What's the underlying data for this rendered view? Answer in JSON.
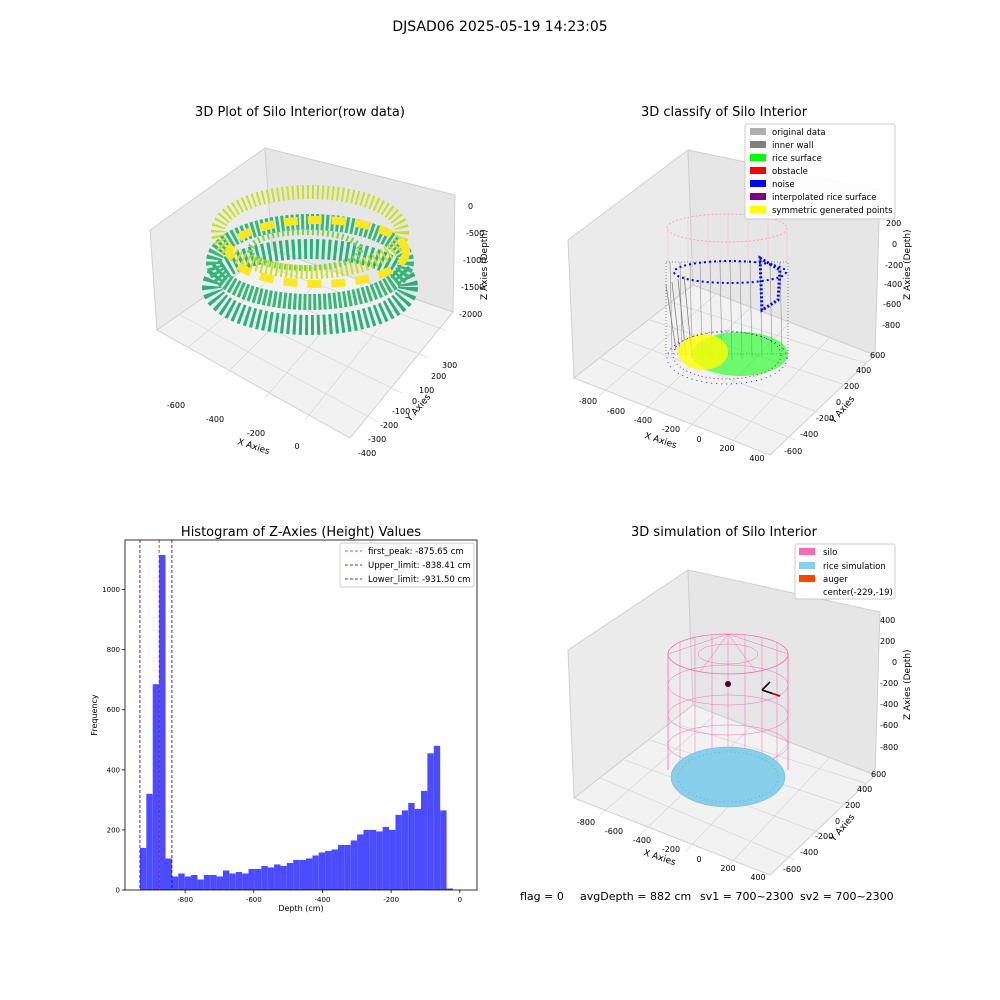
{
  "figure": {
    "suptitle": "DJSAD06 2025-05-19 14:23:05",
    "footer": {
      "flag": "flag = 0",
      "avg_depth": "avgDepth = 882 cm",
      "sv1": "sv1 = 700~2300",
      "sv2": "sv2 = 700~2300"
    }
  },
  "colors": {
    "hist_bar": "#4b4bff",
    "peak_line": "#ff0000",
    "limit_line": "#0000cc",
    "silo": "#ff69b4",
    "rice_simulation": "#87ceeb",
    "auger": "#ff4500",
    "original_data": "#b0b0b0",
    "inner_wall": "#808080",
    "rice_surface": "#00ff00",
    "obstacle": "#ff0000",
    "noise": "#0000ff",
    "interpolated_rice_surface": "#800080",
    "symmetric_generated_points": "#ffff00"
  },
  "chart_data": [
    {
      "type": "scatter",
      "subtype": "3d",
      "title": "3D Plot of Silo Interior(row data)",
      "xlabel": "X Axies",
      "ylabel": "Y Axies",
      "zlabel": "Z Axies (Depth)",
      "x_ticks": [
        "-600",
        "-400",
        "-200",
        "0"
      ],
      "y_ticks": [
        "-400",
        "-300",
        "-200",
        "-100",
        "0",
        "100",
        "200",
        "300"
      ],
      "z_ticks": [
        "0",
        "-500",
        "-1000",
        "-1500",
        "-2000"
      ],
      "colormap": "viridis",
      "grid": true
    },
    {
      "type": "scatter",
      "subtype": "3d",
      "title": "3D classify of Silo Interior",
      "xlabel": "X Axies",
      "ylabel": "Y Axies",
      "zlabel": "Z Axies (Depth)",
      "x_ticks": [
        "-800",
        "-600",
        "-400",
        "-200",
        "0",
        "200",
        "400"
      ],
      "y_ticks": [
        "-600",
        "-400",
        "-200",
        "0",
        "200",
        "400",
        "600"
      ],
      "z_ticks": [
        "200",
        "0",
        "-200",
        "-400",
        "-600",
        "-800"
      ],
      "legend": [
        {
          "label": "original data",
          "color": "#b0b0b0"
        },
        {
          "label": "inner wall",
          "color": "#808080"
        },
        {
          "label": "rice surface",
          "color": "#00ff00"
        },
        {
          "label": "obstacle",
          "color": "#ff0000"
        },
        {
          "label": "noise",
          "color": "#0000ff"
        },
        {
          "label": "interpolated rice surface",
          "color": "#800080"
        },
        {
          "label": "symmetric generated points",
          "color": "#ffff00"
        }
      ],
      "legend_position": "top-right",
      "grid": true
    },
    {
      "type": "bar",
      "subtype": "histogram",
      "title": "Histogram of Z-Axies (Height) Values",
      "xlabel": "Depth (cm)",
      "ylabel": "Frequency",
      "xlim": [
        -975,
        50
      ],
      "ylim": [
        0,
        1165
      ],
      "x_ticks": [
        -800,
        -600,
        -400,
        -200,
        0
      ],
      "y_ticks": [
        0,
        200,
        400,
        600,
        800,
        1000
      ],
      "bin_width": 18.6,
      "bin_start": -931.5,
      "values": [
        140,
        320,
        685,
        1115,
        105,
        45,
        55,
        45,
        50,
        35,
        50,
        50,
        45,
        65,
        55,
        60,
        55,
        70,
        70,
        80,
        75,
        85,
        80,
        90,
        100,
        100,
        105,
        115,
        125,
        130,
        135,
        150,
        150,
        165,
        185,
        200,
        200,
        195,
        210,
        200,
        250,
        265,
        290,
        270,
        330,
        455,
        480,
        265,
        5
      ],
      "vlines": [
        {
          "label": "first_peak: -875.65 cm",
          "x": -875.65,
          "color": "#ff0000"
        },
        {
          "label": "Upper_limit: -838.41 cm",
          "x": -838.41,
          "color": "#0000cc"
        },
        {
          "label": "Lower_limit: -931.50 cm",
          "x": -931.5,
          "color": "#0000cc"
        }
      ],
      "legend_position": "top-right",
      "grid": false
    },
    {
      "type": "scatter",
      "subtype": "3d",
      "title": "3D simulation of Silo Interior",
      "xlabel": "X Axies",
      "ylabel": "Y Axies",
      "zlabel": "Z Axies (Depth)",
      "x_ticks": [
        "-800",
        "-600",
        "-400",
        "-200",
        "0",
        "200",
        "400"
      ],
      "y_ticks": [
        "-600",
        "-400",
        "-200",
        "0",
        "200",
        "400",
        "600"
      ],
      "z_ticks": [
        "400",
        "200",
        "0",
        "-200",
        "-400",
        "-600",
        "-800"
      ],
      "legend": [
        {
          "label": "silo",
          "color": "#ff69b4"
        },
        {
          "label": "rice simulation",
          "color": "#87ceeb"
        },
        {
          "label": "auger",
          "color": "#ff4500"
        },
        {
          "label": "center(-229,-19)",
          "color": ""
        }
      ],
      "legend_position": "top-right",
      "grid": true
    }
  ]
}
